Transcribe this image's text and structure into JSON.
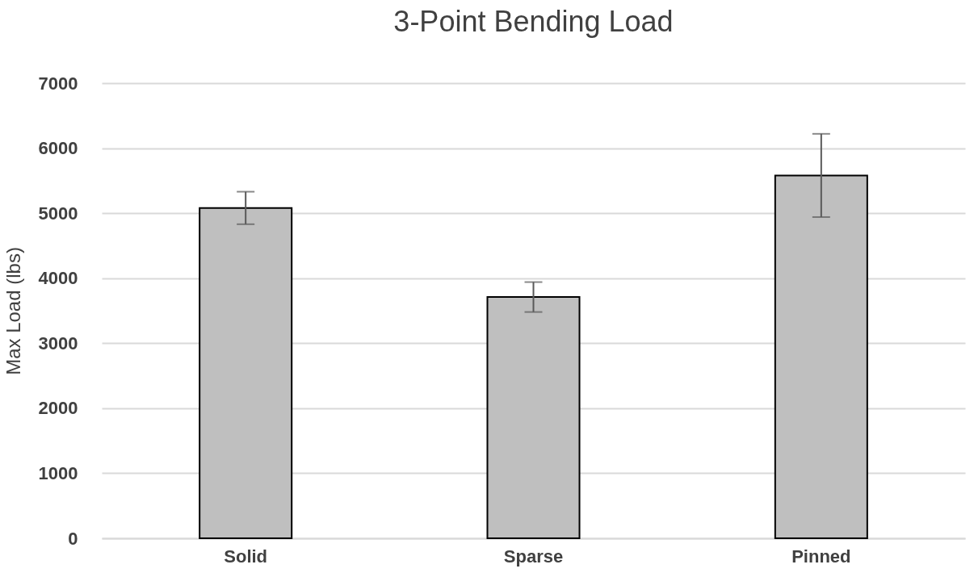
{
  "chart_data": {
    "type": "bar",
    "title": "3-Point Bending Load",
    "ylabel": "Max Load (lbs)",
    "categories": [
      "Solid",
      "Sparse",
      "Pinned"
    ],
    "values": [
      5080,
      3710,
      5580
    ],
    "errors": [
      250,
      230,
      640
    ],
    "color": "#bfbfbf",
    "ylim": [
      0,
      7000
    ],
    "yticks": [
      0,
      1000,
      2000,
      3000,
      4000,
      5000,
      6000,
      7000
    ],
    "grid": "y"
  }
}
